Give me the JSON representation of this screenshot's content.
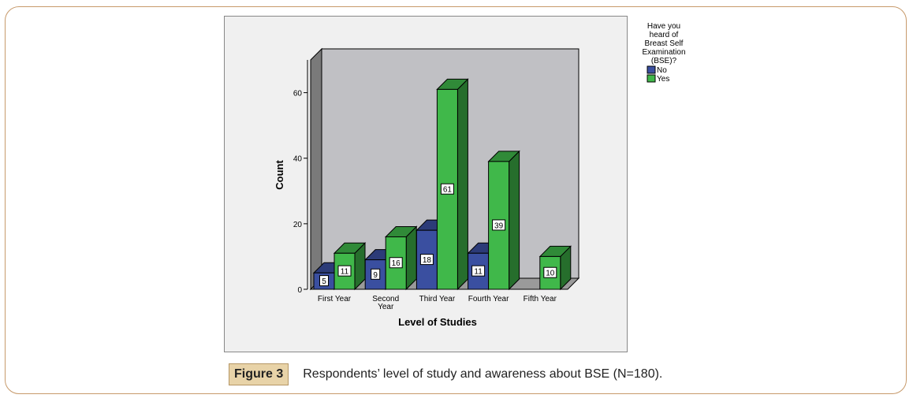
{
  "chart_data": {
    "type": "bar",
    "categories": [
      "First Year",
      "Second Year",
      "Third Year",
      "Fourth Year",
      "Fifth Year"
    ],
    "category_lines": [
      [
        "First Year"
      ],
      [
        "Second",
        "Year"
      ],
      [
        "Third Year"
      ],
      [
        "Fourth Year"
      ],
      [
        "Fifth Year"
      ]
    ],
    "series": [
      {
        "name": "No",
        "values": [
          5,
          9,
          18,
          11,
          0
        ],
        "color": "#3a4fa0"
      },
      {
        "name": "Yes",
        "values": [
          11,
          16,
          61,
          39,
          10
        ],
        "color": "#40b84a"
      }
    ],
    "value_labels": [
      [
        "5",
        "11"
      ],
      [
        "9",
        "16"
      ],
      [
        "18",
        "61"
      ],
      [
        "11",
        "39"
      ],
      [
        "",
        "10"
      ]
    ],
    "xlabel": "Level of Studies",
    "ylabel": "Count",
    "ylim": [
      0,
      70
    ],
    "yticks": [
      0,
      20,
      40,
      60
    ],
    "ytick_labels": [
      "0",
      "20",
      "40",
      "60"
    ],
    "legend_title_lines": [
      "Have you",
      "heard of",
      "Breast Self",
      "Examination",
      "(BSE)?"
    ],
    "legend_position": "top-right",
    "grid": false,
    "style": "3d-clustered-bar"
  },
  "caption": {
    "label": "Figure 3",
    "text": "Respondents’ level of study and awareness about BSE (N=180)."
  }
}
